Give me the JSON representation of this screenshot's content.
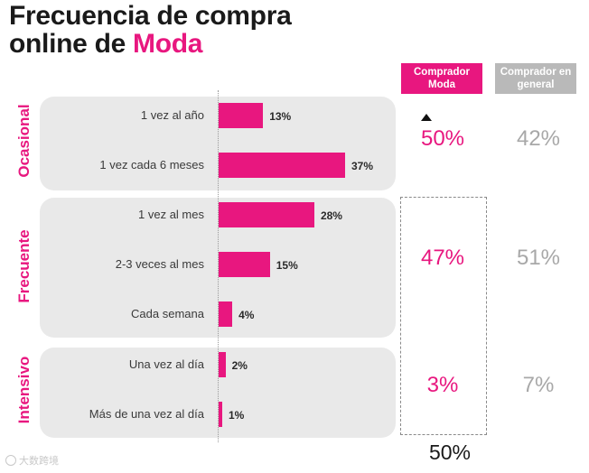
{
  "title": {
    "line1": "Frecuencia de compra",
    "line2_prefix": "online de ",
    "line2_accent": "Moda"
  },
  "columns": {
    "moda": "Comprador Moda",
    "general": "Comprador en general"
  },
  "groups": [
    {
      "label": "Ocasional",
      "moda_pct": "50%",
      "general_pct": "42%"
    },
    {
      "label": "Frecuente",
      "moda_pct": "47%",
      "general_pct": "51%"
    },
    {
      "label": "Intensivo",
      "moda_pct": "3%",
      "general_pct": "7%"
    }
  ],
  "bottom_total": "50%",
  "watermark": "大数跨境",
  "colors": {
    "accent": "#e8177f",
    "grey_header": "#b9b9b9",
    "group_bg": "#e9e9e9"
  },
  "chart_data": {
    "type": "bar",
    "orientation": "horizontal",
    "title": "Frecuencia de compra online de Moda",
    "categories": [
      "1 vez al año",
      "1 vez cada 6 meses",
      "1 vez al mes",
      "2-3 veces al mes",
      "Cada semana",
      "Una vez al día",
      "Más de una vez al día"
    ],
    "values": [
      13,
      37,
      28,
      15,
      4,
      2,
      1
    ],
    "value_labels": [
      "13%",
      "37%",
      "28%",
      "15%",
      "4%",
      "2%",
      "1%"
    ],
    "unit": "%",
    "groups": [
      "Ocasional",
      "Ocasional",
      "Frecuente",
      "Frecuente",
      "Frecuente",
      "Intensivo",
      "Intensivo"
    ],
    "xlim": [
      0,
      50
    ]
  }
}
